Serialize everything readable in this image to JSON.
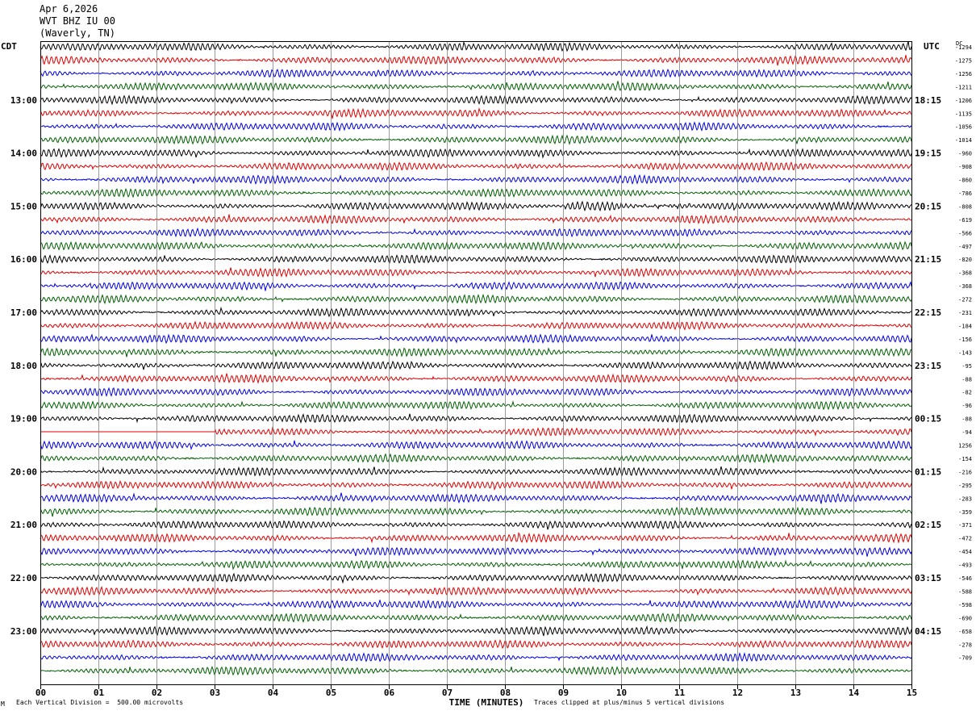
{
  "header": {
    "date": "Apr 6,2026",
    "station": "WVT BHZ IU 00",
    "location": "(Waverly, TN)"
  },
  "left_tz": "CDT",
  "right_tz": "UTC",
  "dc_header": "DC",
  "footer": {
    "scale_note": "Each Vertical Division =  500.00 microvolts",
    "clip_note": "Traces clipped at plus/minus 5 vertical divisions",
    "mark": "M"
  },
  "colors": {
    "trace_cycle": [
      "#000000",
      "#e00000",
      "#0000e0",
      "#006000"
    ],
    "grid": "#808080",
    "frame": "#000000"
  },
  "chart_data": {
    "type": "line",
    "subtype": "helicorder",
    "xlabel": "TIME (MINUTES)",
    "xlim": [
      0,
      15
    ],
    "x_ticks": [
      "00",
      "01",
      "02",
      "03",
      "04",
      "05",
      "06",
      "07",
      "08",
      "09",
      "10",
      "11",
      "12",
      "13",
      "14",
      "15"
    ],
    "minutes_per_line": 15,
    "line_count": 48,
    "left_hour_labels": [
      "13:00",
      "14:00",
      "15:00",
      "16:00",
      "17:00",
      "18:00",
      "19:00",
      "20:00",
      "21:00",
      "22:00",
      "23:00"
    ],
    "right_hour_labels": [
      "18:15",
      "19:15",
      "20:15",
      "21:15",
      "22:15",
      "23:15",
      "00:15",
      "01:15",
      "02:15",
      "03:15",
      "04:15"
    ],
    "dc_offsets": [
      "-1294",
      "-1275",
      "-1256",
      "-1211",
      "-1206",
      "-1135",
      "-1056",
      "-1014",
      "-960",
      "-908",
      "-860",
      "-786",
      "-808",
      "-619",
      "-566",
      "-497",
      "-820",
      "-368",
      "-368",
      "-272",
      "-231",
      "-184",
      "-156",
      "-143",
      "-95",
      "-88",
      "-82",
      "-96",
      "-88",
      "-94",
      "1256",
      "-154",
      "-216",
      "-295",
      "-283",
      "-359",
      "-371",
      "-472",
      "-454",
      "-493",
      "-546",
      "-588",
      "-598",
      "-690",
      "-658",
      "-278",
      "-709",
      ""
    ],
    "notable_events": [
      {
        "line": 12,
        "start_min": 9.0,
        "end_min": 11.2,
        "note": "larger amplitude burst"
      },
      {
        "line": 29,
        "start_min": 0.0,
        "end_min": 3.0,
        "note": "flat data gap"
      }
    ]
  }
}
